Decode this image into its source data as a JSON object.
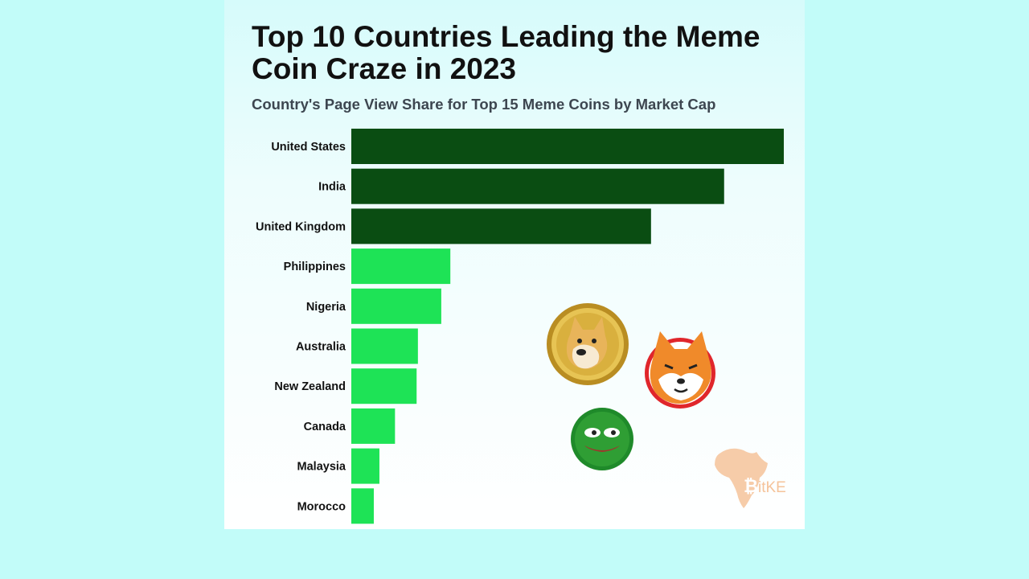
{
  "colors": {
    "page_background": "#c2fcf9",
    "card_background": "#f2fefe",
    "bar_dark": "#0a4d12",
    "bar_light": "#1ee356",
    "logo": "#f5c39a"
  },
  "chart_data": {
    "type": "bar",
    "orientation": "horizontal",
    "title": "Top 10 Countries Leading the Meme Coin Craze in 2023",
    "subtitle": "Country's Page View Share for Top 15 Meme Coins by Market Cap",
    "xlabel": "",
    "ylabel": "",
    "categories": [
      "United States",
      "India",
      "United Kingdom",
      "Philippines",
      "Nigeria",
      "Australia",
      "New Zealand",
      "Canada",
      "Malaysia",
      "Morocco"
    ],
    "values": [
      100,
      86.2,
      69.3,
      22.9,
      20.8,
      15.4,
      15.1,
      10.1,
      6.5,
      5.2
    ],
    "highlight_top_n": 3,
    "grid": false,
    "legend": "none"
  },
  "decorations": {
    "icons": [
      "dogecoin-icon",
      "shiba-inu-coin-icon",
      "pepe-coin-icon",
      "africa-map-logo-icon"
    ],
    "logo_text": "itKE"
  }
}
